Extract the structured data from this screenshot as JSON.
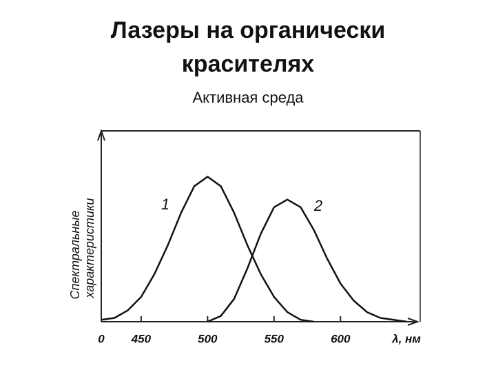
{
  "chart_data": {
    "type": "line",
    "title": [
      "Лазеры на органически",
      "красителях"
    ],
    "subtitle": "Активная среда",
    "x_label": "λ, нм",
    "y_label": [
      "Спектральные",
      "характеристики"
    ],
    "x": [
      420,
      430,
      440,
      450,
      460,
      470,
      480,
      490,
      500,
      510,
      520,
      530,
      540,
      550,
      560,
      570,
      580,
      590,
      600,
      610,
      620,
      630,
      640,
      650
    ],
    "series": [
      {
        "name": "1",
        "color": "#111111",
        "values": [
          0.01,
          0.02,
          0.06,
          0.13,
          0.25,
          0.4,
          0.57,
          0.71,
          0.76,
          0.71,
          0.57,
          0.4,
          0.25,
          0.13,
          0.05,
          0.01,
          0,
          null,
          null,
          null,
          null,
          null,
          null,
          null
        ]
      },
      {
        "name": "2",
        "color": "#111111",
        "values": [
          null,
          null,
          null,
          null,
          null,
          null,
          null,
          null,
          0,
          0.03,
          0.12,
          0.28,
          0.46,
          0.6,
          0.64,
          0.6,
          0.48,
          0.33,
          0.2,
          0.11,
          0.05,
          0.02,
          0.01,
          0
        ]
      }
    ],
    "xlim": [
      420,
      660
    ],
    "ylim": [
      0,
      1
    ],
    "xticks": [
      {
        "value": 420,
        "label": "0"
      },
      450,
      500,
      550,
      600
    ]
  }
}
